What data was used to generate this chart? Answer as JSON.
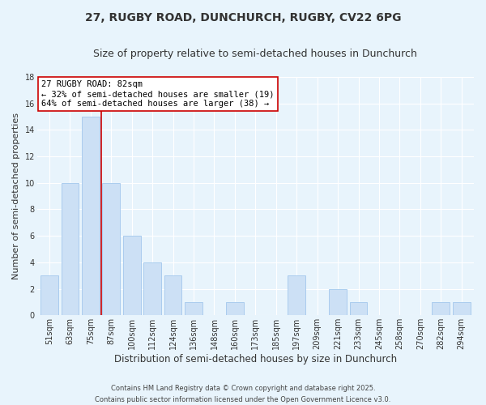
{
  "title": "27, RUGBY ROAD, DUNCHURCH, RUGBY, CV22 6PG",
  "subtitle": "Size of property relative to semi-detached houses in Dunchurch",
  "xlabel": "Distribution of semi-detached houses by size in Dunchurch",
  "ylabel": "Number of semi-detached properties",
  "bar_labels": [
    "51sqm",
    "63sqm",
    "75sqm",
    "87sqm",
    "100sqm",
    "112sqm",
    "124sqm",
    "136sqm",
    "148sqm",
    "160sqm",
    "173sqm",
    "185sqm",
    "197sqm",
    "209sqm",
    "221sqm",
    "233sqm",
    "245sqm",
    "258sqm",
    "270sqm",
    "282sqm",
    "294sqm"
  ],
  "bar_values": [
    3,
    10,
    15,
    10,
    6,
    4,
    3,
    1,
    0,
    1,
    0,
    0,
    3,
    0,
    2,
    1,
    0,
    0,
    0,
    1,
    1
  ],
  "bar_color": "#cce0f5",
  "bar_edge_color": "#aaccee",
  "vline_x_index": 2.5,
  "vline_color": "#cc0000",
  "annotation_line1": "27 RUGBY ROAD: 82sqm",
  "annotation_line2": "← 32% of semi-detached houses are smaller (19)",
  "annotation_line3": "64% of semi-detached houses are larger (38) →",
  "annotation_box_facecolor": "white",
  "annotation_box_edgecolor": "#cc0000",
  "ylim": [
    0,
    18
  ],
  "yticks": [
    0,
    2,
    4,
    6,
    8,
    10,
    12,
    14,
    16,
    18
  ],
  "background_color": "#e8f4fc",
  "grid_color": "white",
  "footer_text": "Contains HM Land Registry data © Crown copyright and database right 2025.\nContains public sector information licensed under the Open Government Licence v3.0.",
  "title_fontsize": 10,
  "subtitle_fontsize": 9,
  "xlabel_fontsize": 8.5,
  "ylabel_fontsize": 8,
  "tick_fontsize": 7,
  "annotation_fontsize": 7.5,
  "footer_fontsize": 6
}
